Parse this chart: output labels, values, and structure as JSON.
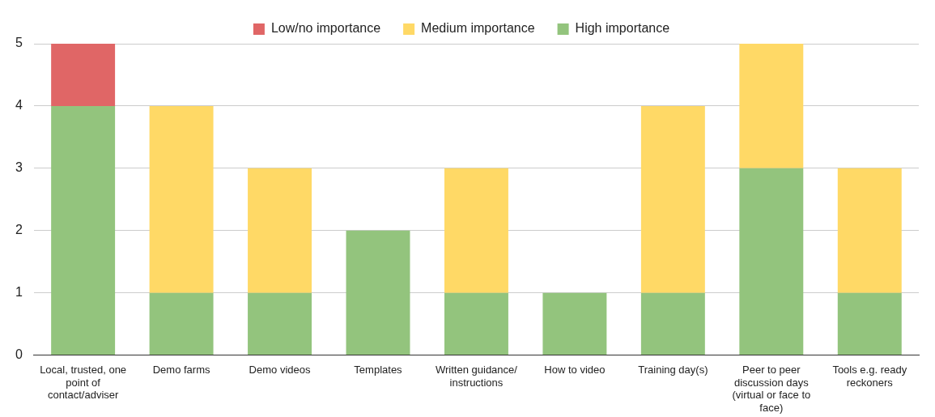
{
  "chart_data": {
    "type": "bar",
    "stacked": true,
    "categories": [
      "Local, trusted, one point of contact/adviser",
      "Demo farms",
      "Demo videos",
      "Templates",
      "Written guidance/ instructions",
      "How to video",
      "Training day(s)",
      "Peer to peer discussion days (virtual or face to face)",
      "Tools e.g. ready reckoners"
    ],
    "series": [
      {
        "name": "High importance",
        "color": "#93c47d",
        "values": [
          4,
          1,
          1,
          2,
          1,
          1,
          1,
          3,
          1
        ]
      },
      {
        "name": "Medium importance",
        "color": "#ffd966",
        "values": [
          0,
          3,
          2,
          0,
          2,
          0,
          3,
          2,
          2
        ]
      },
      {
        "name": "Low/no importance",
        "color": "#e06666",
        "values": [
          1,
          0,
          0,
          0,
          0,
          0,
          0,
          0,
          0
        ]
      }
    ],
    "ylim": [
      0,
      5
    ],
    "yticks": [
      0,
      1,
      2,
      3,
      4,
      5
    ],
    "grid": "y",
    "legend": "top"
  }
}
